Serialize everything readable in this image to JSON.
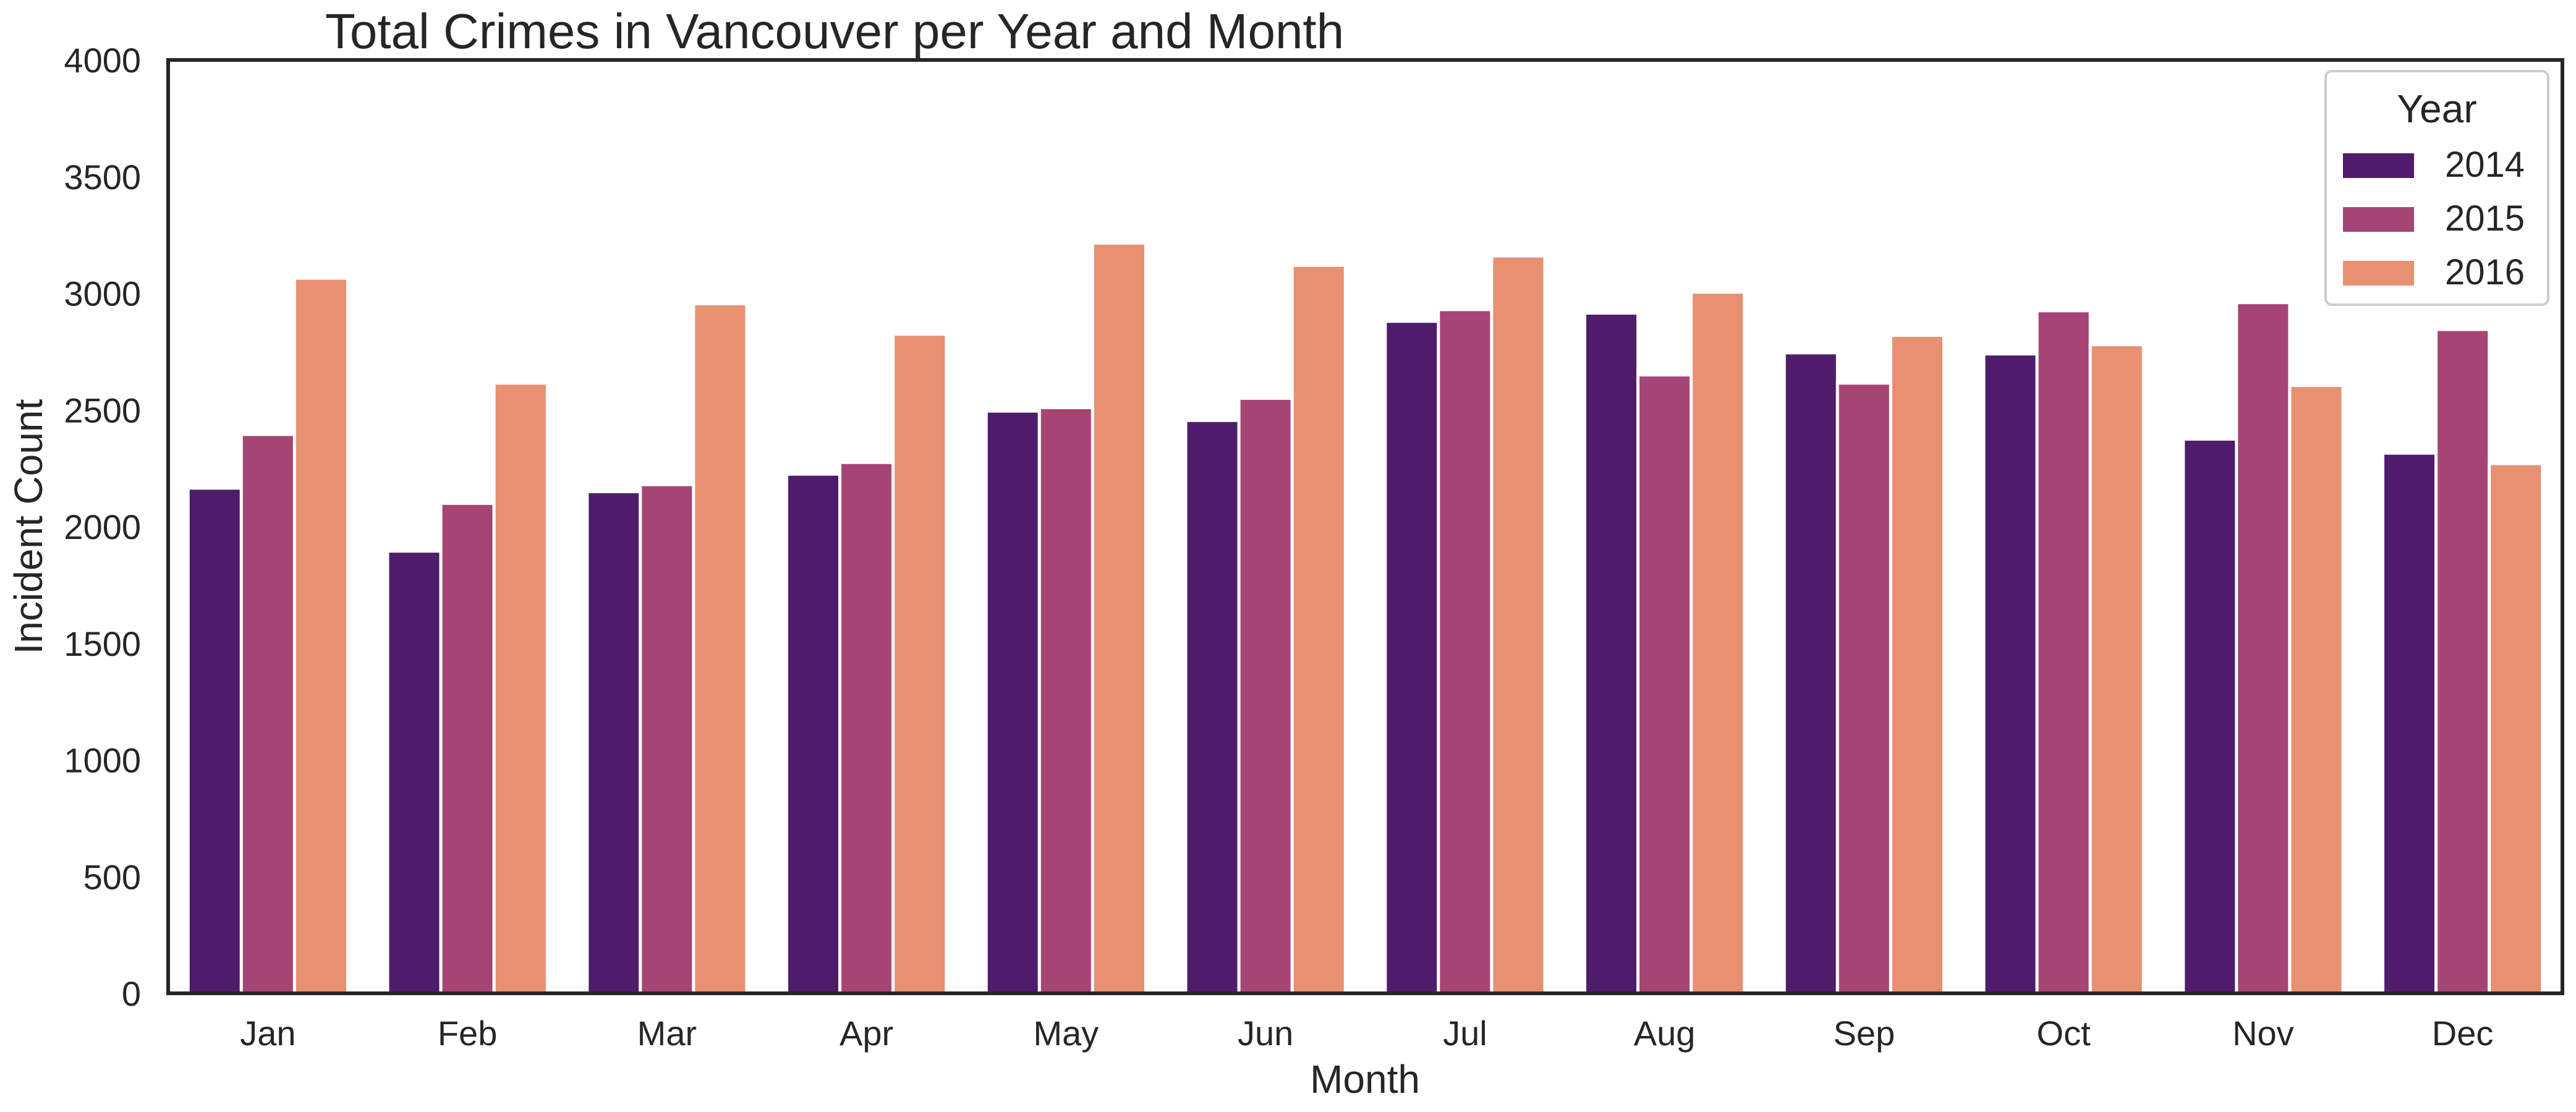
{
  "chart_data": {
    "type": "bar",
    "title": "Total Crimes in Vancouver per Year and Month",
    "xlabel": "Month",
    "ylabel": "Incident Count",
    "ylim": [
      0,
      4000
    ],
    "yticks": [
      0,
      500,
      1000,
      1500,
      2000,
      2500,
      3000,
      3500,
      4000
    ],
    "grid": false,
    "legend": {
      "title": "Year",
      "placement": "top-right"
    },
    "categories": [
      "Jan",
      "Feb",
      "Mar",
      "Apr",
      "May",
      "Jun",
      "Jul",
      "Aug",
      "Sep",
      "Oct",
      "Nov",
      "Dec"
    ],
    "series": [
      {
        "name": "2014",
        "color": "#4f1c6b",
        "values": [
          2165,
          1895,
          2150,
          2225,
          2495,
          2455,
          2880,
          2915,
          2745,
          2740,
          2375,
          2315
        ]
      },
      {
        "name": "2015",
        "color": "#a64574",
        "values": [
          2395,
          2100,
          2180,
          2275,
          2510,
          2550,
          2930,
          2650,
          2615,
          2925,
          2960,
          2845
        ]
      },
      {
        "name": "2016",
        "color": "#e79072",
        "values": [
          3065,
          2615,
          2955,
          2825,
          3215,
          3120,
          3160,
          3005,
          2820,
          2780,
          2605,
          2270
        ]
      }
    ]
  }
}
